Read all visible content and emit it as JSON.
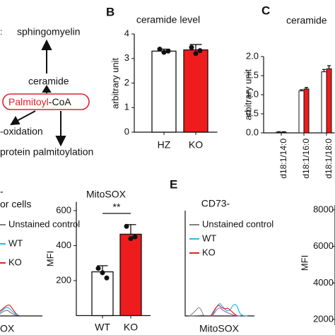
{
  "diagram": {
    "fragment": ":",
    "nodes": [
      "sphingomyelin",
      "ceramide"
    ],
    "center": {
      "highlight": "Palmitoyl",
      "rest": "-CoA"
    },
    "outputs": [
      "-oxidation",
      "protein palmitoylation"
    ]
  },
  "chart_data": [
    {
      "type": "bar",
      "panel": "B",
      "title": "ceramide level",
      "ylabel": "arbitrary unit",
      "categories": [
        "HZ",
        "KO"
      ],
      "values": [
        3.3,
        3.35
      ],
      "errors": [
        0.08,
        0.22
      ],
      "colors": [
        "#ffffff",
        "#ee1c1c"
      ],
      "points": [
        [
          3.38,
          3.25,
          3.3
        ],
        [
          3.45,
          3.2,
          3.32
        ]
      ],
      "ylim": [
        0,
        4
      ],
      "yticks": [
        0,
        1,
        2,
        3,
        4
      ]
    },
    {
      "type": "bar",
      "panel": "C",
      "title": "ceramide",
      "ylabel": "arbitrary unit",
      "categories": [
        "d18:1/14:0",
        "d18:1/16:0",
        "d18:1/18:0"
      ],
      "series": [
        {
          "color": "#ffffff",
          "values": [
            0.02,
            1.1,
            1.6
          ],
          "errors": [
            0.01,
            0.03,
            0.06
          ]
        },
        {
          "color": "#ee1c1c",
          "values": [
            0.02,
            1.15,
            1.68
          ],
          "errors": [
            0.01,
            0.04,
            0.08
          ]
        }
      ],
      "ylim": [
        0,
        2
      ],
      "yticks": [
        {
          "value": 0,
          "label": "0.0"
        },
        0.5,
        {
          "value": 1,
          "label": "1.0"
        },
        1.5,
        {
          "value": 2,
          "label": "2.0"
        }
      ]
    },
    {
      "type": "histogram",
      "title": "or cells",
      "panel_fragment": "-",
      "xlabel": "OX",
      "series": [
        {
          "name": "Unstained control",
          "color": "#808080"
        },
        {
          "name": "WT",
          "color": "#33b5e5"
        },
        {
          "name": "KO",
          "color": "#e0202a"
        }
      ]
    },
    {
      "type": "bar",
      "title": "MitoSOX",
      "ylabel": "MFI",
      "categories": [
        "WT",
        "KO"
      ],
      "values": [
        250,
        465
      ],
      "errors": [
        35,
        55
      ],
      "colors": [
        "#ffffff",
        "#ee1c1c"
      ],
      "points": [
        [
          270,
          245,
          215
        ],
        [
          510,
          440,
          450
        ]
      ],
      "annotation": "**",
      "ylim": [
        0,
        650
      ],
      "yticks": [
        200,
        400,
        600
      ]
    },
    {
      "type": "histogram",
      "panel": "E",
      "title": "CD73-",
      "xlabel": "MitoSOX",
      "series": [
        {
          "name": "Unstained control",
          "color": "#808080"
        },
        {
          "name": "WT",
          "color": "#33b5e5"
        },
        {
          "name": "KO",
          "color": "#e0202a"
        }
      ]
    },
    {
      "type": "bar",
      "ylabel": "MFI",
      "ylim": [
        2000,
        8000
      ],
      "yticks": [
        2000,
        4000,
        6000,
        8000
      ]
    }
  ]
}
